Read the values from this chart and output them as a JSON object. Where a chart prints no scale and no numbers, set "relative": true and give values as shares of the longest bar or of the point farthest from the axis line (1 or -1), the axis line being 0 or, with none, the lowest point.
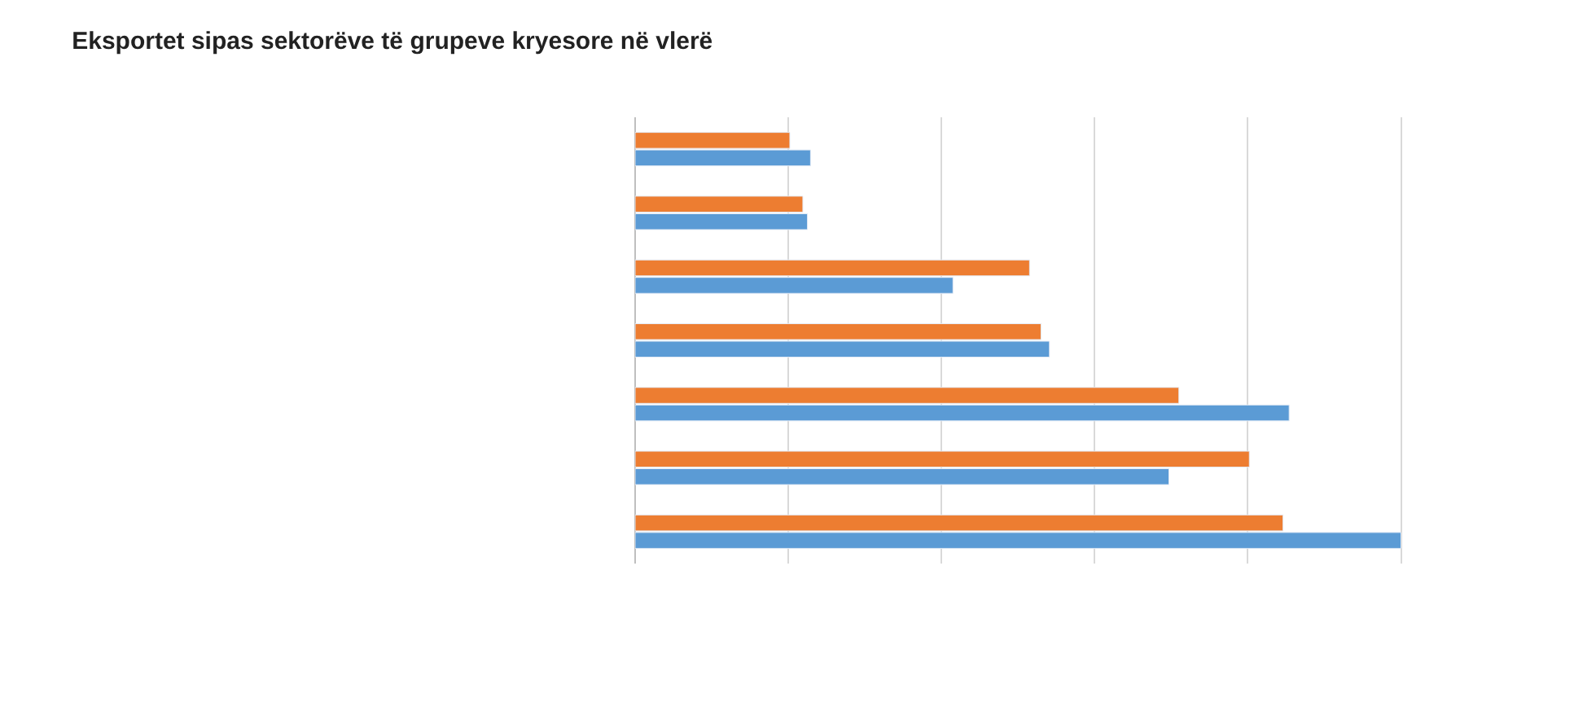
{
  "chart_data": {
    "type": "bar",
    "orientation": "horizontal",
    "relative": true,
    "title": "Eksportet sipas sektorëve të grupeve kryesore në vlerë",
    "categories": [
      null,
      null,
      null,
      null,
      null,
      null,
      null
    ],
    "series": [
      {
        "color": "#ed7d31",
        "values": [
          0.202,
          0.219,
          0.515,
          0.53,
          0.71,
          0.802,
          0.846
        ]
      },
      {
        "color": "#5b9bd5",
        "values": [
          0.229,
          0.225,
          0.415,
          0.541,
          0.854,
          0.697,
          1.0
        ]
      }
    ],
    "grid": "x"
  }
}
